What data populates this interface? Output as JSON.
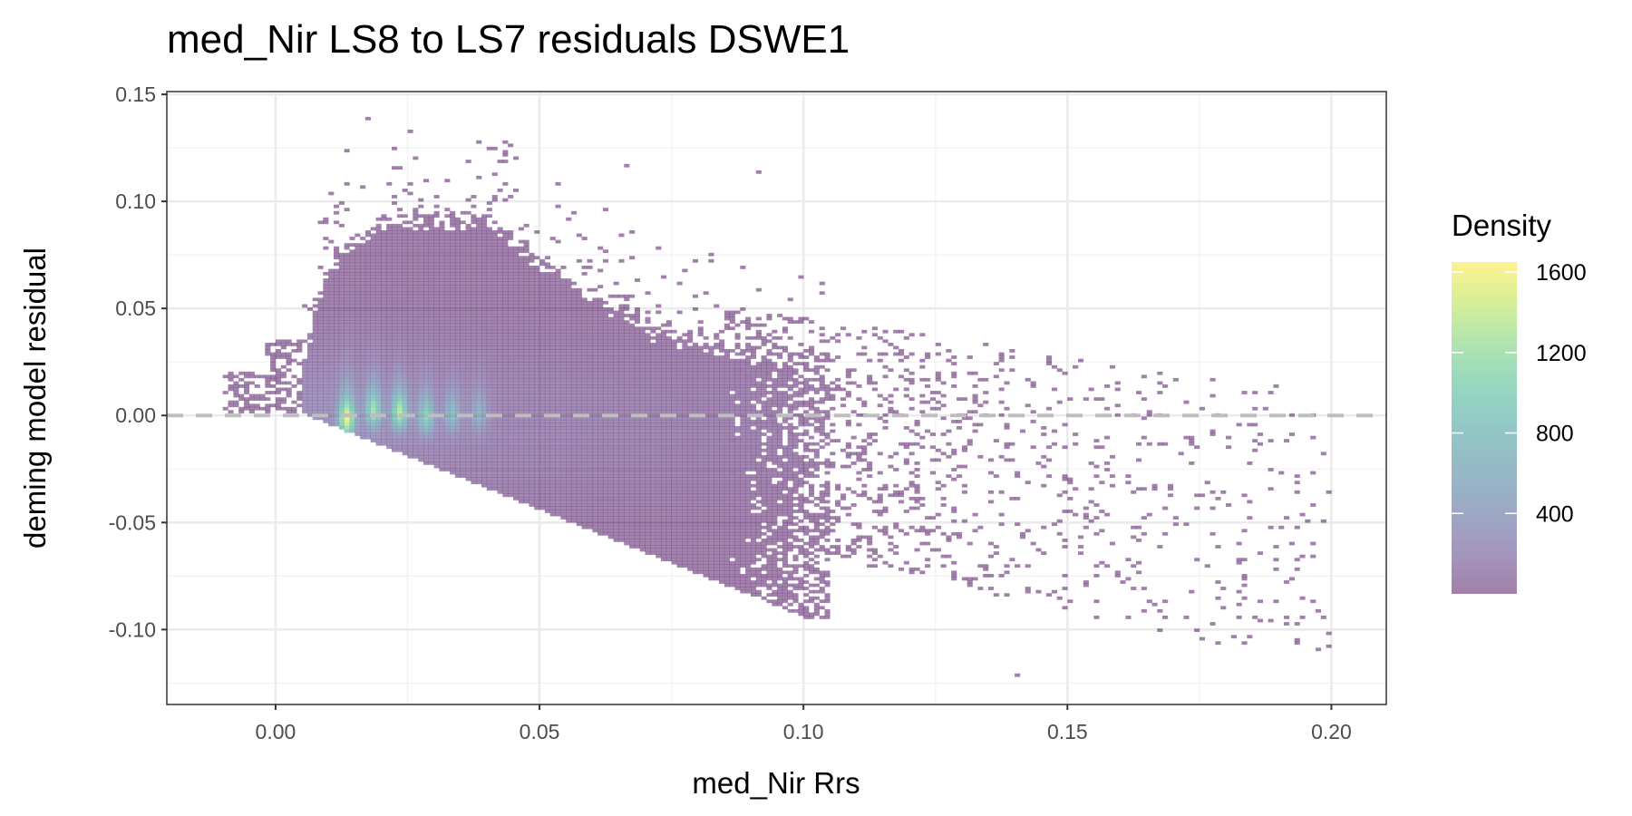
{
  "chart_data": {
    "type": "heatmap",
    "subtype": "2d-bin density",
    "title": "med_Nir LS8 to LS7 residuals DSWE1",
    "xlabel": "med_Nir Rrs",
    "ylabel": "deming model residual",
    "xlim": [
      -0.0206,
      0.2104
    ],
    "ylim": [
      -0.135,
      0.1513
    ],
    "x_ticks": [
      0.0,
      0.05,
      0.1,
      0.15,
      0.2
    ],
    "x_tick_labels": [
      "0.00",
      "0.05",
      "0.10",
      "0.15",
      "0.20"
    ],
    "y_ticks": [
      0.15,
      0.1,
      0.05,
      0.0,
      -0.05,
      -0.1
    ],
    "y_tick_labels": [
      "0.15",
      "0.10",
      "0.05",
      "0.00",
      "-0.05",
      "-0.10"
    ],
    "grid": true,
    "reference_line": {
      "y": 0,
      "style": "dashed",
      "color": "#bebebe"
    },
    "binwidth": {
      "x": 0.001,
      "y": 0.0015
    },
    "fill_alpha": 0.5,
    "colormap": "viridis",
    "legend": {
      "title": "Density",
      "placement": "right",
      "range": [
        0,
        1650
      ],
      "ticks": [
        1600,
        1200,
        800,
        400
      ],
      "tick_labels": [
        "1600",
        "1200",
        "800",
        "400"
      ]
    },
    "dense_region": {
      "x_range": [
        0.005,
        0.1
      ],
      "lower_edge": [
        [
          0.005,
          0.0
        ],
        [
          0.05,
          -0.045
        ],
        [
          0.1,
          -0.095
        ]
      ],
      "upper_edge": [
        [
          0.005,
          0.03
        ],
        [
          0.01,
          0.07
        ],
        [
          0.02,
          0.09
        ],
        [
          0.04,
          0.09
        ],
        [
          0.05,
          0.07
        ],
        [
          0.07,
          0.04
        ],
        [
          0.1,
          0.02
        ]
      ]
    },
    "sparse_region": {
      "x_range": [
        0.08,
        0.2
      ],
      "y_range": [
        -0.12,
        0.06
      ]
    },
    "left_stub": {
      "x_range": [
        -0.01,
        0.005
      ],
      "y_range": [
        0.003,
        0.02
      ]
    },
    "hotspots": [
      {
        "x": 0.013,
        "y": -0.002,
        "density": 1600
      },
      {
        "x": 0.018,
        "y": 0.002,
        "density": 1200
      },
      {
        "x": 0.023,
        "y": 0.001,
        "density": 1350
      },
      {
        "x": 0.028,
        "y": -0.001,
        "density": 1000
      },
      {
        "x": 0.033,
        "y": 0.0,
        "density": 700
      },
      {
        "x": 0.038,
        "y": 0.0,
        "density": 550
      }
    ],
    "outliers": [
      [
        0.017,
        0.138
      ],
      [
        0.025,
        0.132
      ],
      [
        0.013,
        0.123
      ],
      [
        0.066,
        0.116
      ],
      [
        0.091,
        0.113
      ],
      [
        0.14,
        -0.122
      ],
      [
        0.175,
        -0.105
      ]
    ]
  }
}
